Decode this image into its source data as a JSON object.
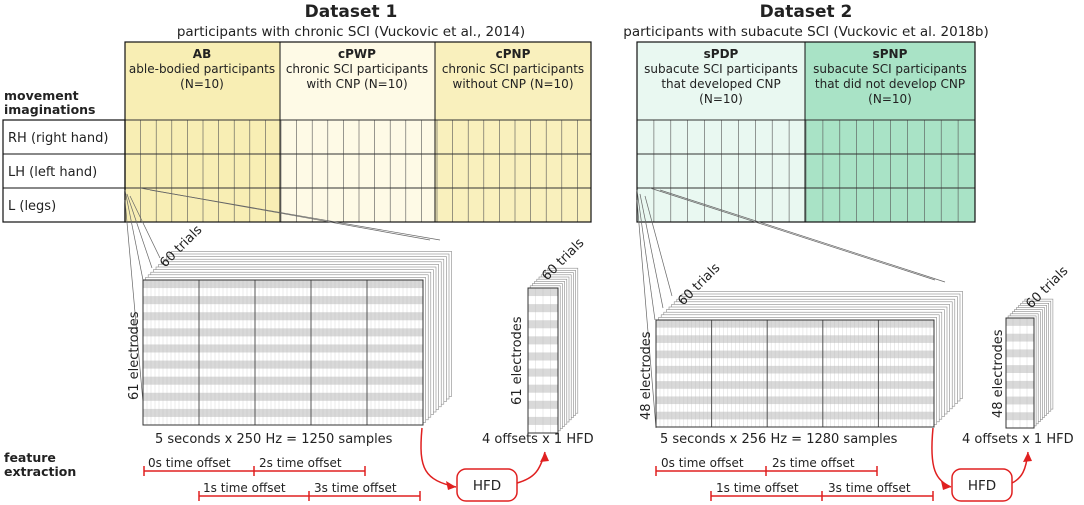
{
  "row_labels": {
    "heading_line1": "movement",
    "heading_line2": "imaginations",
    "rows": [
      "RH (right hand)",
      "LH (left hand)",
      "L (legs)"
    ],
    "feature_line1": "feature",
    "feature_line2": "extraction"
  },
  "dataset1": {
    "title": "Dataset 1",
    "subtitle": "participants with chronic SCI (Vuckovic et al., 2014)",
    "groups": [
      {
        "name": "AB",
        "lines": [
          "able-bodied participants",
          "(N=10)"
        ],
        "color": "#f8eeb4"
      },
      {
        "name": "cPWP",
        "lines": [
          "chronic SCI participants",
          "with CNP (N=10)"
        ],
        "color": "#fefae6"
      },
      {
        "name": "cPNP",
        "lines": [
          "chronic SCI participants",
          "without CNP (N=10)"
        ],
        "color": "#f9f0bd"
      }
    ],
    "trials_label": "60 trials",
    "electrodes_label": "61 electrodes",
    "samples_label": "5 seconds x 250 Hz = 1250 samples",
    "hfd_trials_label": "60 trials",
    "hfd_electrodes_label": "61 electrodes",
    "offsets_label": "4 offsets x 1 HFD",
    "hfd_label": "HFD",
    "time_offsets": [
      "0s time offset",
      "2s time offset",
      "1s time offset",
      "3s time offset"
    ]
  },
  "dataset2": {
    "title": "Dataset 2",
    "subtitle": "participants with subacute SCI (Vuckovic et al. 2018b)",
    "groups": [
      {
        "name": "sPDP",
        "lines": [
          "subacute SCI participants",
          "that developed CNP",
          "(N=10)"
        ],
        "color": "#e9f8f1"
      },
      {
        "name": "sPNP",
        "lines": [
          "subacute SCI participants",
          "that did not develop CNP",
          "(N=10)"
        ],
        "color": "#a9e3c6"
      }
    ],
    "trials_label": "60 trials",
    "electrodes_label": "48 electrodes",
    "samples_label": "5 seconds x 256 Hz = 1280 samples",
    "hfd_trials_label": "60 trials",
    "hfd_electrodes_label": "48 electrodes",
    "offsets_label": "4 offsets x 1 HFD",
    "hfd_label": "HFD",
    "time_offsets": [
      "0s time offset",
      "2s time offset",
      "1s time offset",
      "3s time offset"
    ]
  },
  "colors": {
    "offset_red": "#e02020",
    "grid_line": "#555555",
    "stripe": "#d9d9d9"
  }
}
